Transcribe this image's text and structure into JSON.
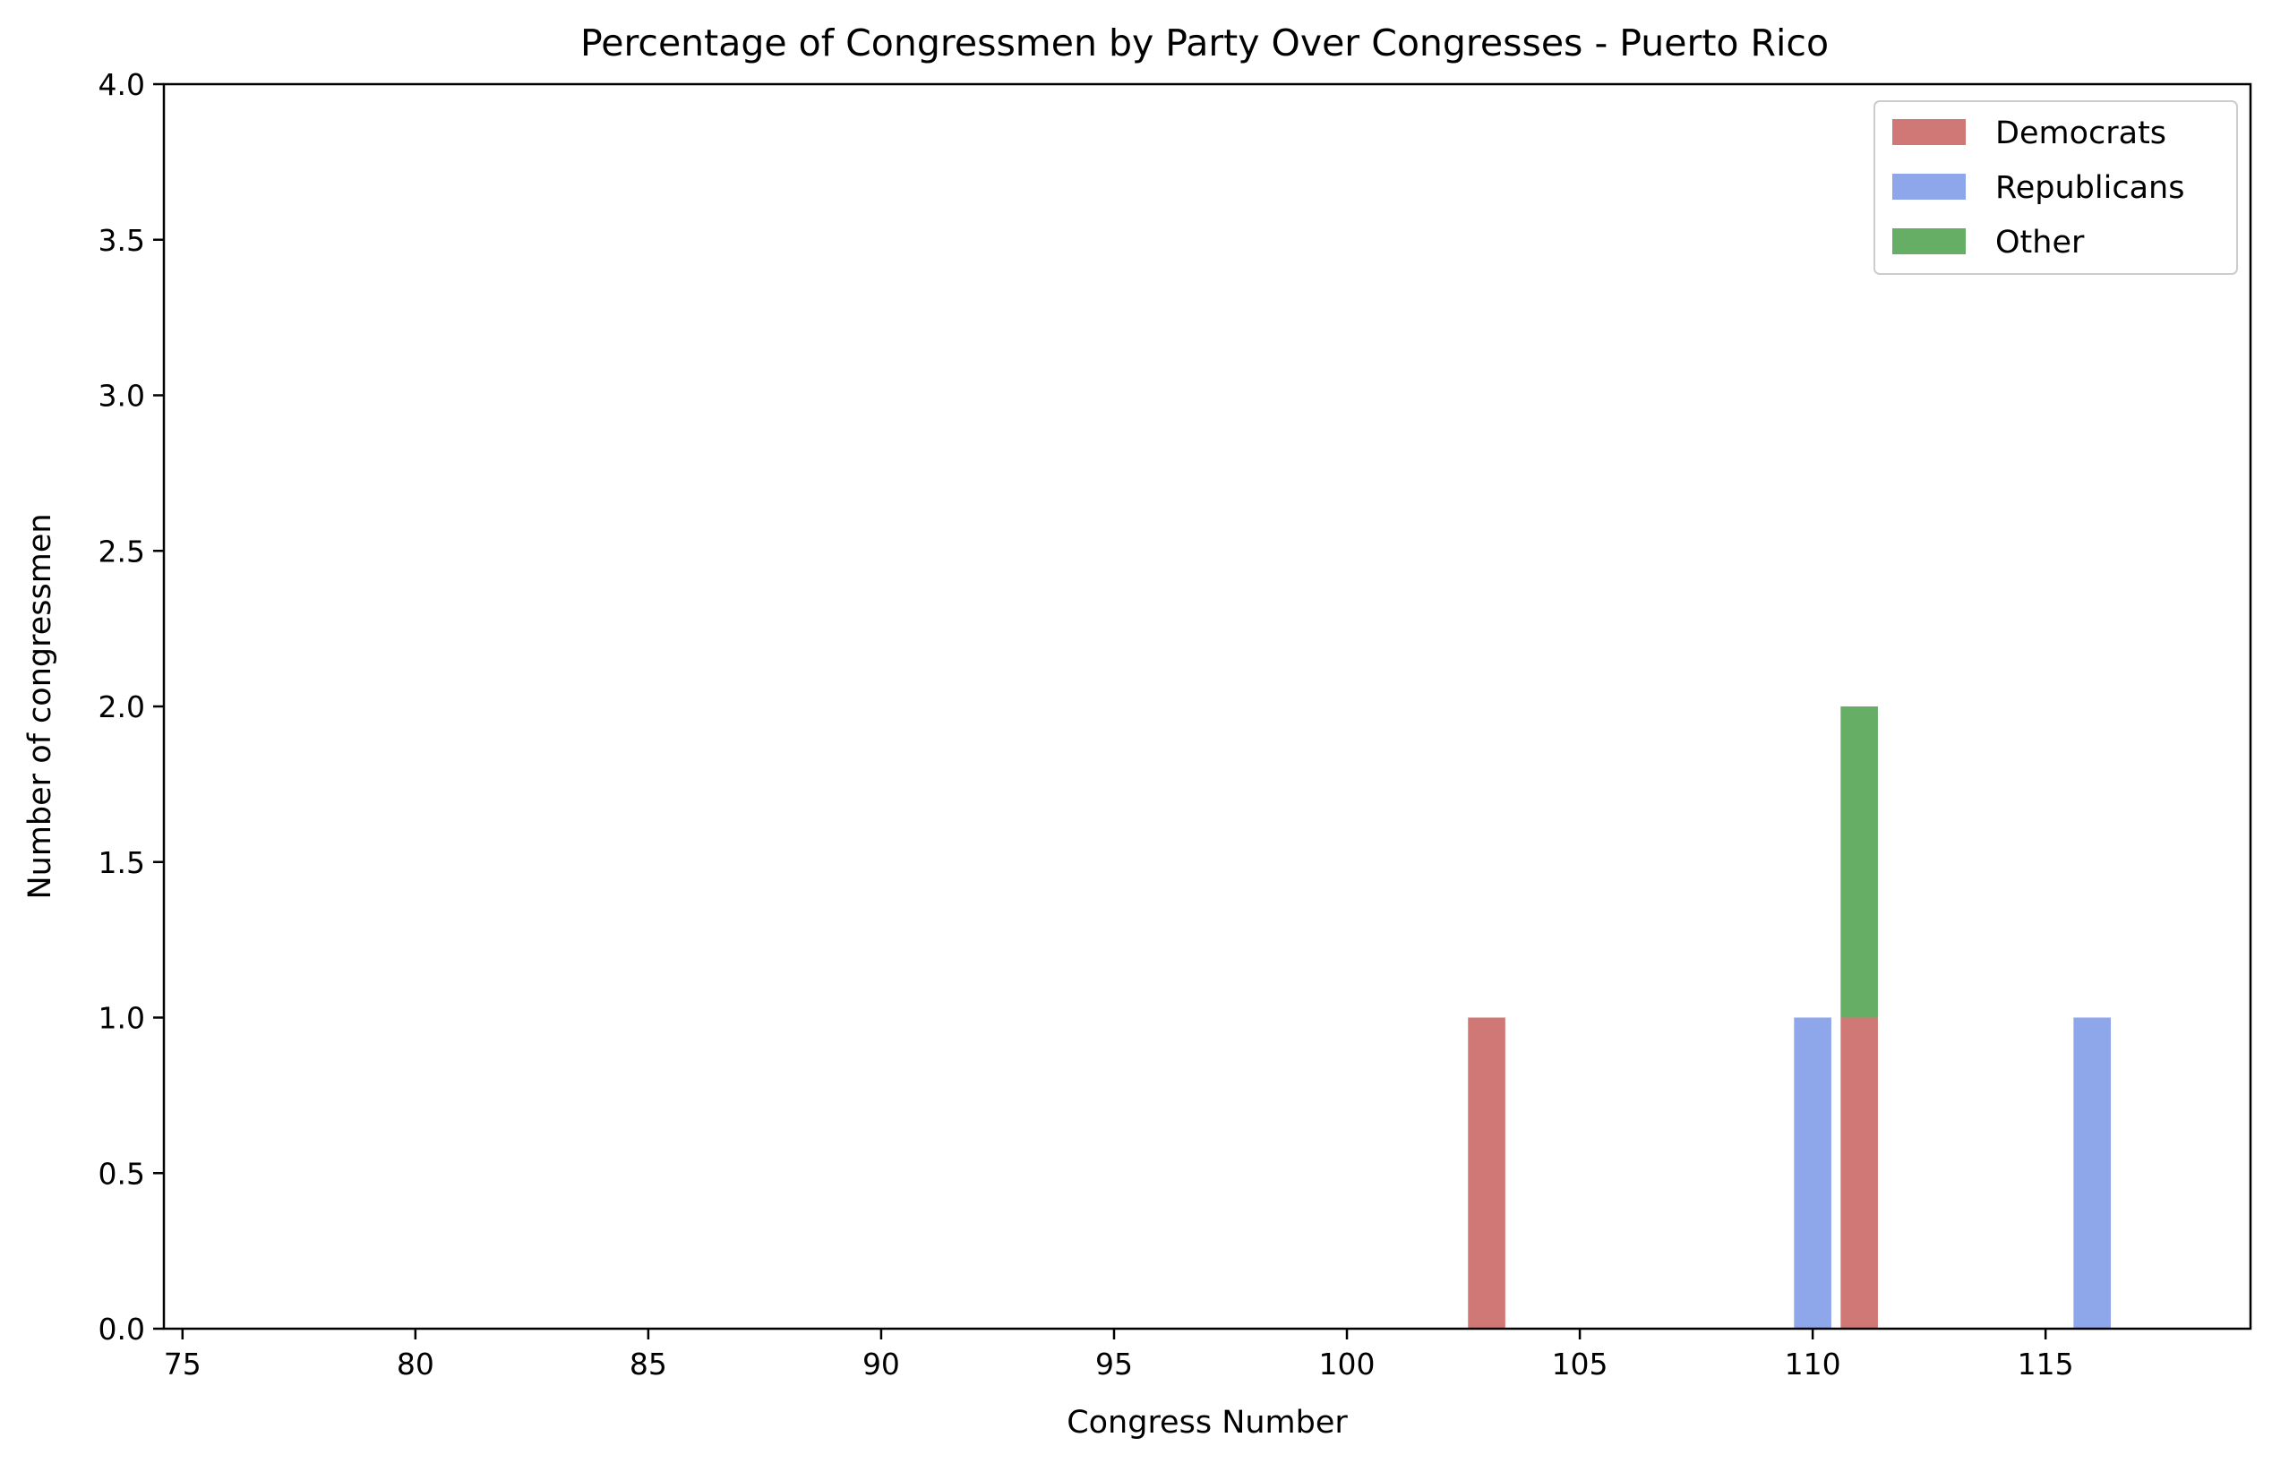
{
  "chart_data": {
    "type": "bar",
    "stacked": true,
    "title": "Percentage of Congressmen by Party Over Congresses - Puerto Rico",
    "xlabel": "Congress Number",
    "ylabel": "Number of congressmen",
    "xlim": [
      74.6,
      119.4
    ],
    "ylim": [
      0,
      4
    ],
    "xticks": [
      75,
      80,
      85,
      90,
      95,
      100,
      105,
      110,
      115
    ],
    "yticks": [
      "0.0",
      "0.5",
      "1.0",
      "1.5",
      "2.0",
      "2.5",
      "3.0",
      "3.5",
      "4.0"
    ],
    "grid": false,
    "legend_position": "top-right",
    "bar_width": 0.8,
    "series": [
      {
        "name": "Democrats",
        "color": "#d07876",
        "points": [
          {
            "x": 103,
            "y": 1
          },
          {
            "x": 111,
            "y": 1
          }
        ]
      },
      {
        "name": "Republicans",
        "color": "#8ea6ea",
        "points": [
          {
            "x": 110,
            "y": 1
          },
          {
            "x": 116,
            "y": 1
          }
        ]
      },
      {
        "name": "Other",
        "color": "#66ad66",
        "points": [
          {
            "x": 111,
            "y": 1
          }
        ]
      }
    ]
  }
}
